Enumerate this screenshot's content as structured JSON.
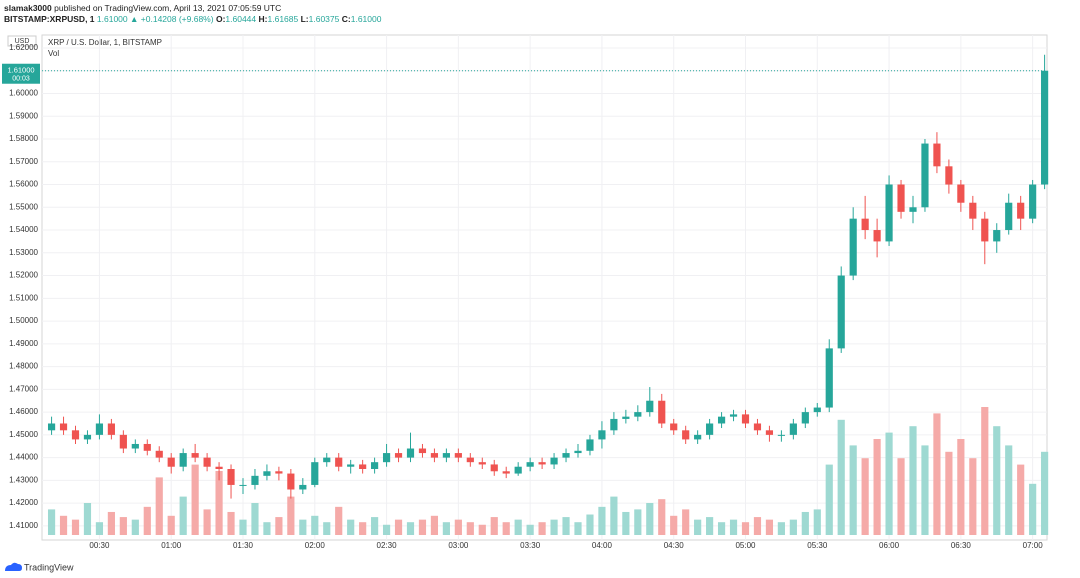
{
  "header": {
    "author": "slamak3000",
    "published": "published on TradingView.com, April 13, 2021 07:05:59 UTC",
    "symbol": "BITSTAMP:XRPUSD, 1",
    "last": "1.61000",
    "change": "▲ +0.14208 (+9.68%)",
    "ohlc": [
      {
        "label": "O:",
        "value": "1.60444"
      },
      {
        "label": "H:",
        "value": "1.61685"
      },
      {
        "label": "L:",
        "value": "1.60375"
      },
      {
        "label": "C:",
        "value": "1.61000"
      }
    ]
  },
  "chart_data": {
    "type": "candlestick",
    "title": "XRP / U.S. Dollar, 1, BITSTAMP",
    "volume_label": "Vol",
    "currency": "USD",
    "x": [
      "00:10",
      "00:15",
      "00:20",
      "00:25",
      "00:30",
      "00:35",
      "00:40",
      "00:45",
      "00:50",
      "00:55",
      "01:00",
      "01:05",
      "01:10",
      "01:15",
      "01:20",
      "01:25",
      "01:30",
      "01:35",
      "01:40",
      "01:45",
      "01:50",
      "01:55",
      "02:00",
      "02:05",
      "02:10",
      "02:15",
      "02:20",
      "02:25",
      "02:30",
      "02:35",
      "02:40",
      "02:45",
      "02:50",
      "02:55",
      "03:00",
      "03:05",
      "03:10",
      "03:15",
      "03:20",
      "03:25",
      "03:30",
      "03:35",
      "03:40",
      "03:45",
      "03:50",
      "03:55",
      "04:00",
      "04:05",
      "04:10",
      "04:15",
      "04:20",
      "04:25",
      "04:30",
      "04:35",
      "04:40",
      "04:45",
      "04:50",
      "04:55",
      "05:00",
      "05:05",
      "05:10",
      "05:15",
      "05:20",
      "05:25",
      "05:30",
      "05:35",
      "05:40",
      "05:45",
      "05:50",
      "05:55",
      "06:00",
      "06:05",
      "06:10",
      "06:15",
      "06:20",
      "06:25",
      "06:30",
      "06:35",
      "06:40",
      "06:45",
      "06:50",
      "06:55",
      "07:00",
      "07:05"
    ],
    "open": [
      1.452,
      1.455,
      1.452,
      1.448,
      1.45,
      1.455,
      1.45,
      1.444,
      1.446,
      1.443,
      1.44,
      1.436,
      1.442,
      1.44,
      1.436,
      1.435,
      1.428,
      1.428,
      1.432,
      1.434,
      1.433,
      1.426,
      1.428,
      1.438,
      1.44,
      1.436,
      1.437,
      1.435,
      1.438,
      1.442,
      1.44,
      1.444,
      1.442,
      1.44,
      1.442,
      1.44,
      1.438,
      1.437,
      1.434,
      1.433,
      1.436,
      1.438,
      1.437,
      1.44,
      1.442,
      1.443,
      1.448,
      1.452,
      1.457,
      1.458,
      1.46,
      1.465,
      1.455,
      1.452,
      1.448,
      1.45,
      1.455,
      1.458,
      1.459,
      1.455,
      1.452,
      1.45,
      1.45,
      1.455,
      1.46,
      1.462,
      1.488,
      1.52,
      1.545,
      1.54,
      1.535,
      1.56,
      1.548,
      1.55,
      1.578,
      1.568,
      1.56,
      1.552,
      1.545,
      1.535,
      1.54,
      1.552,
      1.545,
      1.56
    ],
    "high": [
      1.458,
      1.458,
      1.454,
      1.452,
      1.459,
      1.457,
      1.452,
      1.448,
      1.448,
      1.445,
      1.442,
      1.444,
      1.446,
      1.442,
      1.438,
      1.437,
      1.431,
      1.435,
      1.437,
      1.436,
      1.435,
      1.431,
      1.44,
      1.442,
      1.442,
      1.439,
      1.439,
      1.44,
      1.446,
      1.444,
      1.451,
      1.446,
      1.444,
      1.444,
      1.444,
      1.442,
      1.44,
      1.439,
      1.436,
      1.438,
      1.44,
      1.44,
      1.442,
      1.444,
      1.446,
      1.45,
      1.456,
      1.46,
      1.461,
      1.463,
      1.471,
      1.468,
      1.457,
      1.454,
      1.452,
      1.457,
      1.46,
      1.461,
      1.461,
      1.457,
      1.454,
      1.452,
      1.457,
      1.462,
      1.464,
      1.492,
      1.524,
      1.55,
      1.555,
      1.545,
      1.564,
      1.562,
      1.555,
      1.58,
      1.583,
      1.571,
      1.562,
      1.555,
      1.548,
      1.543,
      1.556,
      1.555,
      1.562,
      1.617
    ],
    "low": [
      1.45,
      1.45,
      1.446,
      1.446,
      1.448,
      1.448,
      1.442,
      1.442,
      1.441,
      1.438,
      1.433,
      1.434,
      1.438,
      1.434,
      1.43,
      1.422,
      1.424,
      1.426,
      1.43,
      1.43,
      1.422,
      1.424,
      1.427,
      1.436,
      1.434,
      1.433,
      1.433,
      1.433,
      1.436,
      1.438,
      1.438,
      1.44,
      1.438,
      1.438,
      1.438,
      1.436,
      1.435,
      1.432,
      1.431,
      1.432,
      1.434,
      1.435,
      1.435,
      1.438,
      1.44,
      1.441,
      1.444,
      1.45,
      1.455,
      1.456,
      1.458,
      1.453,
      1.45,
      1.446,
      1.446,
      1.448,
      1.453,
      1.456,
      1.453,
      1.45,
      1.447,
      1.447,
      1.448,
      1.453,
      1.458,
      1.46,
      1.486,
      1.518,
      1.536,
      1.528,
      1.533,
      1.545,
      1.543,
      1.548,
      1.565,
      1.556,
      1.548,
      1.54,
      1.525,
      1.53,
      1.538,
      1.54,
      1.543,
      1.558
    ],
    "close": [
      1.455,
      1.452,
      1.448,
      1.45,
      1.455,
      1.45,
      1.444,
      1.446,
      1.443,
      1.44,
      1.436,
      1.442,
      1.44,
      1.436,
      1.435,
      1.428,
      1.428,
      1.432,
      1.434,
      1.433,
      1.426,
      1.428,
      1.438,
      1.44,
      1.436,
      1.437,
      1.435,
      1.438,
      1.442,
      1.44,
      1.444,
      1.442,
      1.44,
      1.442,
      1.44,
      1.438,
      1.437,
      1.434,
      1.433,
      1.436,
      1.438,
      1.437,
      1.44,
      1.442,
      1.443,
      1.448,
      1.452,
      1.457,
      1.458,
      1.46,
      1.465,
      1.455,
      1.452,
      1.448,
      1.45,
      1.455,
      1.458,
      1.459,
      1.455,
      1.452,
      1.45,
      1.45,
      1.455,
      1.46,
      1.462,
      1.488,
      1.52,
      1.545,
      1.54,
      1.535,
      1.56,
      1.548,
      1.55,
      1.578,
      1.568,
      1.56,
      1.552,
      1.545,
      1.535,
      1.54,
      1.552,
      1.545,
      1.56,
      1.61
    ],
    "volume": [
      20,
      15,
      12,
      25,
      10,
      18,
      14,
      12,
      22,
      45,
      15,
      30,
      55,
      20,
      50,
      18,
      12,
      25,
      10,
      14,
      30,
      12,
      15,
      10,
      22,
      12,
      10,
      14,
      8,
      12,
      10,
      12,
      15,
      10,
      12,
      10,
      8,
      14,
      10,
      12,
      8,
      10,
      12,
      14,
      10,
      16,
      22,
      30,
      18,
      20,
      25,
      28,
      15,
      20,
      12,
      14,
      10,
      12,
      10,
      14,
      12,
      10,
      12,
      18,
      20,
      55,
      90,
      70,
      60,
      75,
      80,
      60,
      85,
      70,
      95,
      65,
      75,
      60,
      100,
      85,
      70,
      55,
      40,
      65
    ],
    "up_color": "#26a69a",
    "down_color": "#ef5350",
    "volume_up_color": "#9ed9d2",
    "volume_down_color": "#f5aaa8",
    "last_price": {
      "value": 1.61,
      "label": "1.61000"
    },
    "countdown": "00:03",
    "xlim": [
      "00:06",
      "07:06"
    ],
    "ylim": [
      1.406,
      1.6257
    ],
    "yticks": [
      {
        "value": 1.62,
        "label": "1.62000"
      },
      {
        "value": 1.61,
        "label": "1.61000"
      },
      {
        "value": 1.6,
        "label": "1.60000"
      },
      {
        "value": 1.59,
        "label": "1.59000"
      },
      {
        "value": 1.58,
        "label": "1.58000"
      },
      {
        "value": 1.57,
        "label": "1.57000"
      },
      {
        "value": 1.56,
        "label": "1.56000"
      },
      {
        "value": 1.55,
        "label": "1.55000"
      },
      {
        "value": 1.54,
        "label": "1.54000"
      },
      {
        "value": 1.53,
        "label": "1.53000"
      },
      {
        "value": 1.52,
        "label": "1.52000"
      },
      {
        "value": 1.51,
        "label": "1.51000"
      },
      {
        "value": 1.5,
        "label": "1.50000"
      },
      {
        "value": 1.49,
        "label": "1.49000"
      },
      {
        "value": 1.48,
        "label": "1.48000"
      },
      {
        "value": 1.47,
        "label": "1.47000"
      },
      {
        "value": 1.46,
        "label": "1.46000"
      },
      {
        "value": 1.45,
        "label": "1.45000"
      },
      {
        "value": 1.44,
        "label": "1.44000"
      },
      {
        "value": 1.43,
        "label": "1.43000"
      },
      {
        "value": 1.42,
        "label": "1.42000"
      },
      {
        "value": 1.41,
        "label": "1.41000"
      }
    ],
    "xticks": [
      "00:30",
      "01:00",
      "01:30",
      "02:00",
      "02:30",
      "03:00",
      "03:30",
      "04:00",
      "04:30",
      "05:00",
      "05:30",
      "06:00",
      "06:30",
      "07:00"
    ],
    "grid": true
  },
  "footer": {
    "brand": "TradingView"
  }
}
